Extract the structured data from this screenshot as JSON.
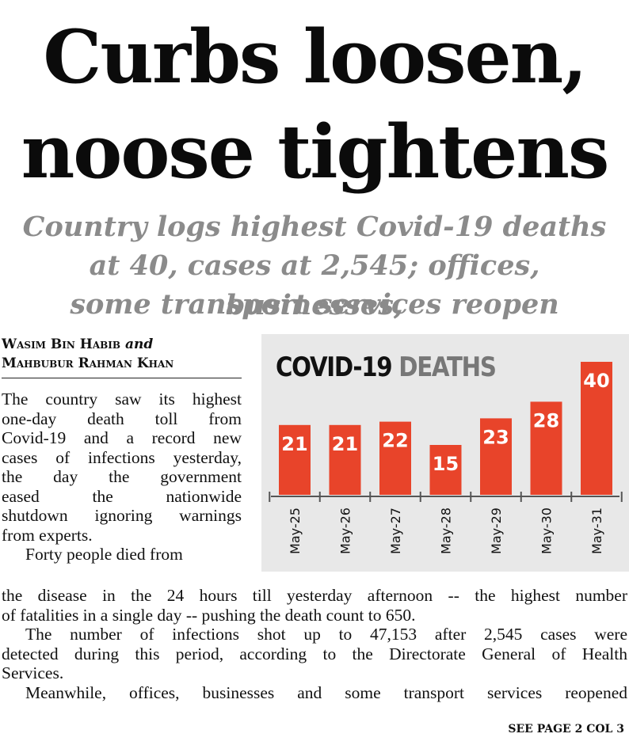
{
  "headline": {
    "line1": "Curbs loosen,",
    "line2": "noose tightens"
  },
  "subhead": {
    "line1": "Country logs highest Covid-19 deaths",
    "line2": "at 40, cases at 2,545; offices, businesses,",
    "line3": "some transport services reopen"
  },
  "byline": {
    "author1": "Wasim Bin Habib",
    "and": "and",
    "author2": "Mahbubur Rahman Khan"
  },
  "article": {
    "col_lines": [
      "The country saw its highest",
      "one-day death toll from",
      "Covid-19 and a record new",
      "cases of infections yesterday,",
      "the day the government",
      "eased the nationwide",
      "shutdown ignoring warnings"
    ],
    "col_last": "from experts.",
    "col_p2": "Forty people died from",
    "wide_line1": "the disease in the 24 hours till yesterday afternoon -- the highest number",
    "wide_line2": "of fatalities in a single day -- pushing the death count to 650.",
    "p3_line1": "The number of infections shot up to 47,153 after 2,545 cases were",
    "p3_line2": "detected during this period, according to the Directorate General of Health",
    "p3_line3": "Services.",
    "p4_line1": "Meanwhile, offices, businesses and some transport services reopened",
    "see_page": "SEE PAGE 2 COL 3"
  },
  "chart_data": {
    "type": "bar",
    "title_part1": "COVID-19",
    "title_part2": "DEATHS",
    "categories": [
      "May-25",
      "May-26",
      "May-27",
      "May-28",
      "May-29",
      "May-30",
      "May-31"
    ],
    "values": [
      21,
      21,
      22,
      15,
      23,
      28,
      40
    ],
    "ylim": [
      0,
      40
    ],
    "bar_color": "#e8442a",
    "label_color": "#ffffff",
    "background": "#e8e8e8"
  }
}
